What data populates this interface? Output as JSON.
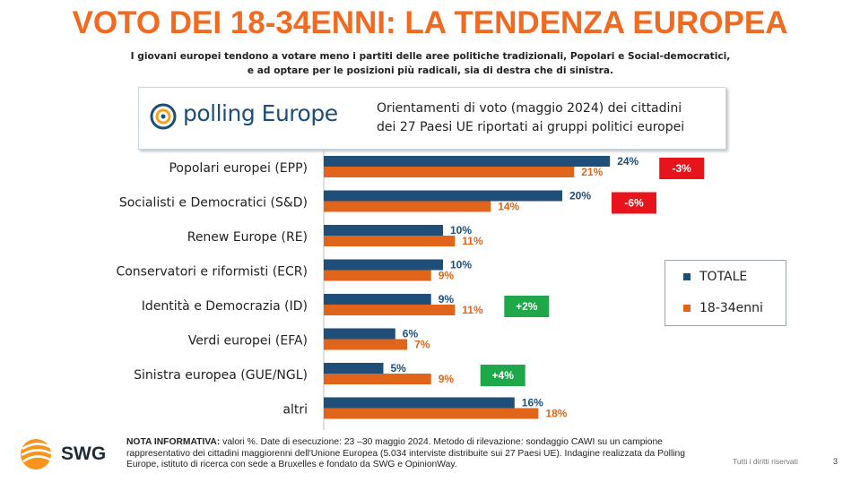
{
  "title": "VOTO DEI 18-34ENNI: LA TENDENZA EUROPEA",
  "subtitle": {
    "line1": "I giovani europei tendono a votare meno i partiti delle aree politiche tradizionali, Popolari e Social-democratici,",
    "line2": "e ad optare per le posizioni più radicali, sia di destra che di sinistra."
  },
  "source_box": {
    "logo_text": "polling Europe",
    "description_line1": "Orientamenti di voto (maggio 2024) dei cittadini",
    "description_line2": "dei 27 Paesi UE riportati ai gruppi politici europei"
  },
  "colors": {
    "title": "#f26a1f",
    "totale": "#1f4e79",
    "giovani": "#e0651b",
    "negative_badge": "#e8141b",
    "positive_badge": "#1fa84a"
  },
  "chart_data": {
    "type": "bar",
    "orientation": "horizontal",
    "categories": [
      "Popolari europei (EPP)",
      "Socialisti e Democratici (S&D)",
      "Renew Europe (RE)",
      "Conservatori e riformisti (ECR)",
      "Identità e Democrazia (ID)",
      "Verdi europei (EFA)",
      "Sinistra europea (GUE/NGL)",
      "altri"
    ],
    "series": [
      {
        "name": "TOTALE",
        "values": [
          24,
          20,
          10,
          10,
          9,
          6,
          5,
          16
        ],
        "labels": [
          "24%",
          "20%",
          "10%",
          "10%",
          "9%",
          "6%",
          "5%",
          "16%"
        ]
      },
      {
        "name": "18-34enni",
        "values": [
          21,
          14,
          11,
          9,
          11,
          7,
          9,
          18
        ],
        "labels": [
          "21%",
          "14%",
          "11%",
          "9%",
          "11%",
          "7%",
          "9%",
          "18%"
        ]
      }
    ],
    "unit": "%",
    "badges": [
      {
        "category_index": 0,
        "text": "-3%",
        "type": "negative"
      },
      {
        "category_index": 1,
        "text": "-6%",
        "type": "negative"
      },
      {
        "category_index": 4,
        "text": "+2%",
        "type": "positive"
      },
      {
        "category_index": 6,
        "text": "+4%",
        "type": "positive"
      }
    ],
    "legend_placement": "right"
  },
  "note": {
    "label": "NOTA INFORMATIVA:",
    "text": "valori %. Date di esecuzione: 23 –30 maggio 2024. Metodo di rilevazione: sondaggio CAWI su un campione rappresentativo dei cittadini maggiorenni dell'Unione Europea (5.034 interviste distribuite sui 27 Paesi UE). Indagine realizzata da Polling Europe, istituto di ricerca con sede a Bruxelles e fondato da SWG e OpinionWay."
  },
  "footer": {
    "logo_text": "SWG",
    "rights": "Tutti i diritti riservati",
    "page_number": "3"
  }
}
